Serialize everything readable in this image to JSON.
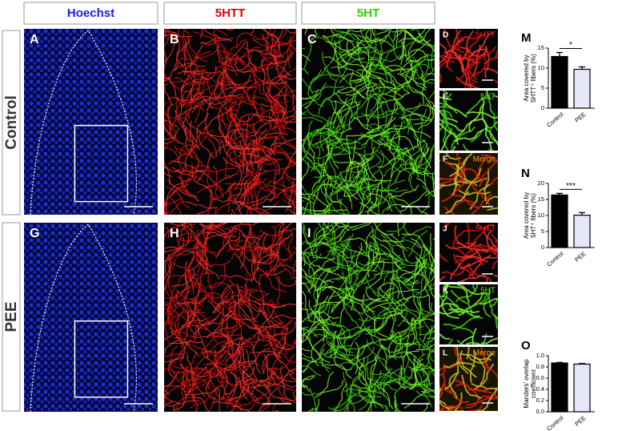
{
  "headers": [
    "Hoechst",
    "5HTT",
    "5HT"
  ],
  "rows": [
    "Control",
    "PEE"
  ],
  "panels": [
    "A",
    "B",
    "C",
    "D",
    "E",
    "F",
    "G",
    "H",
    "I",
    "J",
    "K",
    "L"
  ],
  "insets": {
    "D": "5HTT",
    "E": "5HT",
    "F": "Merge",
    "J": "5HTT",
    "K": "5HT",
    "L": "Merge"
  },
  "chart_data": [
    {
      "type": "bar",
      "letter": "M",
      "ylabel": [
        "Area covered by",
        "5HTT⁺ fibers (%)"
      ],
      "categories": [
        "Control",
        "PEE"
      ],
      "values": [
        12.9,
        9.7
      ],
      "errors": [
        1.0,
        0.6
      ],
      "colors": [
        "#000000",
        "#e6e6fa"
      ],
      "ylim": [
        0,
        15
      ],
      "yticks": [
        0,
        5,
        10,
        15
      ],
      "significance": "*"
    },
    {
      "type": "bar",
      "letter": "N",
      "ylabel": [
        "Area covered by",
        "5HT⁺ fibers (%)"
      ],
      "categories": [
        "Control",
        "PEE"
      ],
      "values": [
        16.4,
        10.1
      ],
      "errors": [
        0.5,
        0.8
      ],
      "colors": [
        "#000000",
        "#e6e6fa"
      ],
      "ylim": [
        0,
        20
      ],
      "yticks": [
        0,
        5,
        10,
        15,
        20
      ],
      "significance": "***"
    },
    {
      "type": "bar",
      "letter": "O",
      "ylabel": [
        "Manders' overlap",
        "coefficient"
      ],
      "categories": [
        "Control",
        "PEE"
      ],
      "values": [
        0.87,
        0.85
      ],
      "errors": [
        0.01,
        0.01
      ],
      "colors": [
        "#000000",
        "#e6e6fa"
      ],
      "ylim": [
        0,
        1.0
      ],
      "yticks": [
        {
          "value": 0,
          "label": "0.0"
        },
        0.2,
        0.4,
        0.6,
        0.8,
        {
          "value": 1.0,
          "label": "1.0"
        }
      ]
    }
  ]
}
